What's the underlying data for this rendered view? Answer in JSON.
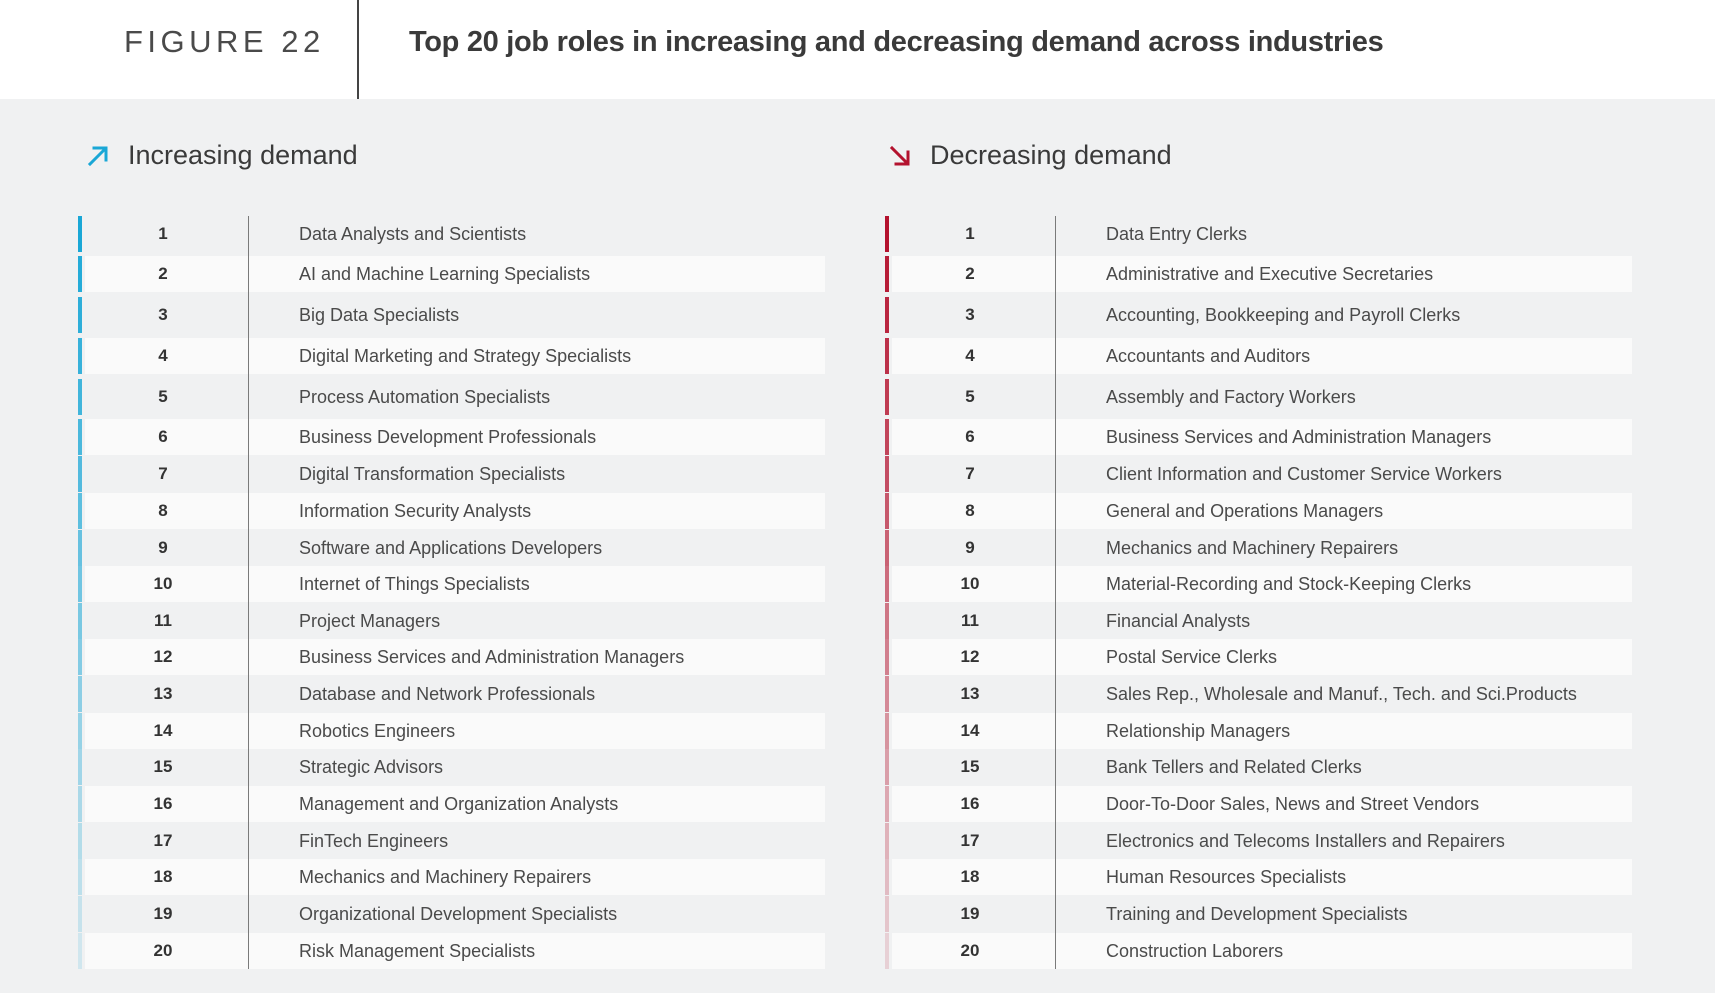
{
  "figure": {
    "label": "FIGURE 22",
    "title": "Top 20 job roles in increasing and decreasing demand across industries"
  },
  "increasing": {
    "heading": "Increasing demand",
    "icon": "arrow-up-right-icon",
    "accent_color": "#1aa7d6",
    "rows": [
      {
        "rank": "1",
        "role": "Data Analysts and Scientists"
      },
      {
        "rank": "2",
        "role": "AI and Machine Learning Specialists"
      },
      {
        "rank": "3",
        "role": "Big Data Specialists"
      },
      {
        "rank": "4",
        "role": "Digital Marketing and Strategy Specialists"
      },
      {
        "rank": "5",
        "role": "Process Automation Specialists"
      },
      {
        "rank": "6",
        "role": "Business Development Professionals"
      },
      {
        "rank": "7",
        "role": "Digital Transformation Specialists"
      },
      {
        "rank": "8",
        "role": "Information Security Analysts"
      },
      {
        "rank": "9",
        "role": "Software and Applications Developers"
      },
      {
        "rank": "10",
        "role": "Internet of Things Specialists"
      },
      {
        "rank": "11",
        "role": "Project Managers"
      },
      {
        "rank": "12",
        "role": "Business Services and Administration Managers"
      },
      {
        "rank": "13",
        "role": "Database and Network Professionals"
      },
      {
        "rank": "14",
        "role": "Robotics Engineers"
      },
      {
        "rank": "15",
        "role": "Strategic Advisors"
      },
      {
        "rank": "16",
        "role": "Management and Organization Analysts"
      },
      {
        "rank": "17",
        "role": "FinTech Engineers"
      },
      {
        "rank": "18",
        "role": "Mechanics and Machinery Repairers"
      },
      {
        "rank": "19",
        "role": "Organizational Development Specialists"
      },
      {
        "rank": "20",
        "role": "Risk Management Specialists"
      }
    ]
  },
  "decreasing": {
    "heading": "Decreasing demand",
    "icon": "arrow-down-right-icon",
    "accent_color": "#b3122e",
    "rows": [
      {
        "rank": "1",
        "role": "Data Entry Clerks"
      },
      {
        "rank": "2",
        "role": "Administrative and Executive Secretaries"
      },
      {
        "rank": "3",
        "role": "Accounting,  Bookkeeping and Payroll Clerks"
      },
      {
        "rank": "4",
        "role": "Accountants and Auditors"
      },
      {
        "rank": "5",
        "role": "Assembly and Factory Workers"
      },
      {
        "rank": "6",
        "role": "Business Services and Administration Managers"
      },
      {
        "rank": "7",
        "role": "Client Information and Customer Service Workers"
      },
      {
        "rank": "8",
        "role": "General and Operations Managers"
      },
      {
        "rank": "9",
        "role": "Mechanics and Machinery Repairers"
      },
      {
        "rank": "10",
        "role": "Material-Recording and Stock-Keeping Clerks"
      },
      {
        "rank": "11",
        "role": "Financial Analysts"
      },
      {
        "rank": "12",
        "role": "Postal Service Clerks"
      },
      {
        "rank": "13",
        "role": "Sales Rep., Wholesale and Manuf., Tech. and Sci.Products"
      },
      {
        "rank": "14",
        "role": "Relationship Managers"
      },
      {
        "rank": "15",
        "role": "Bank Tellers and Related Clerks"
      },
      {
        "rank": "16",
        "role": "Door-To-Door Sales, News and Street Vendors"
      },
      {
        "rank": "17",
        "role": "Electronics and Telecoms Installers and Repairers"
      },
      {
        "rank": "18",
        "role": "Human Resources Specialists"
      },
      {
        "rank": "19",
        "role": "Training and Development Specialists"
      },
      {
        "rank": "20",
        "role": "Construction Laborers"
      }
    ]
  }
}
